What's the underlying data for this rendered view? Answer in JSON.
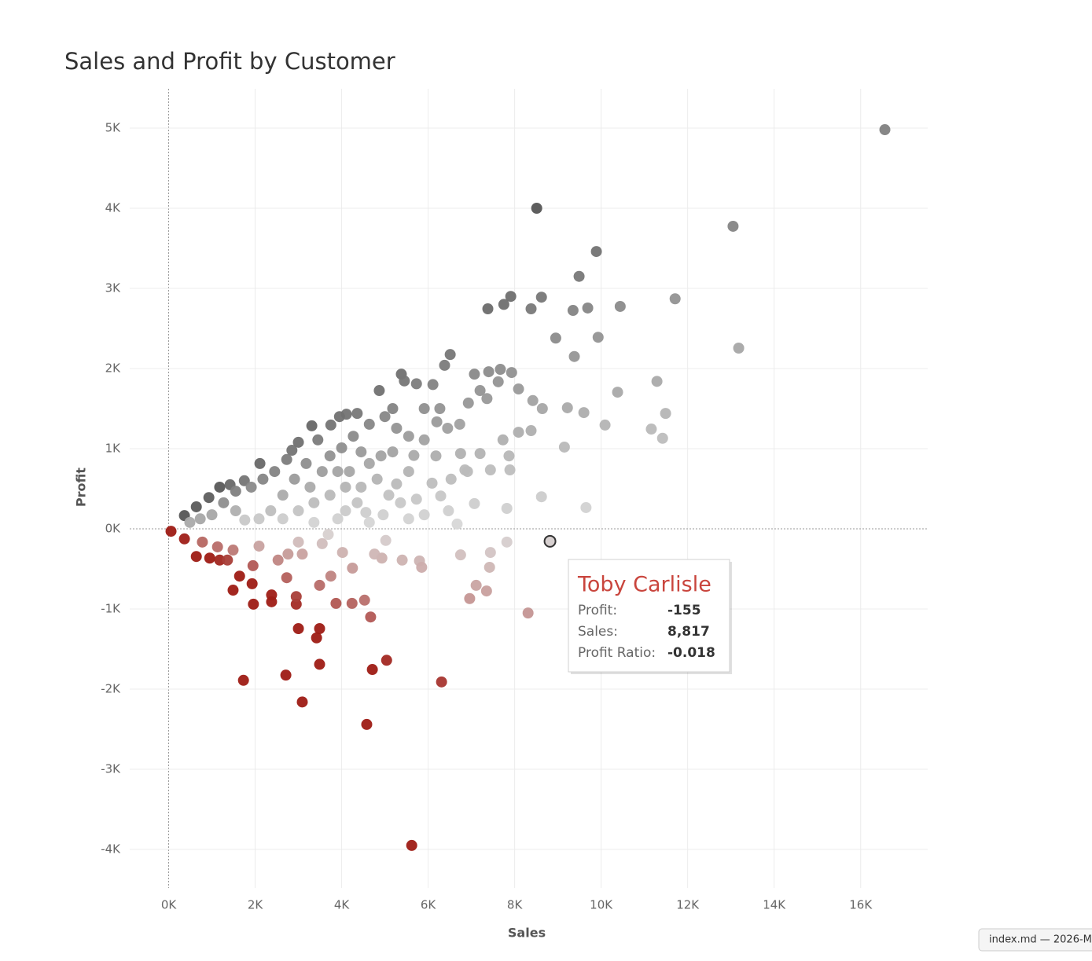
{
  "chart_data": {
    "type": "scatter",
    "title": "Sales and Profit by Customer",
    "x_label": "Sales",
    "y_label": "Profit",
    "xlim": [
      -900,
      17550
    ],
    "ylim": [
      -4480,
      5490
    ],
    "xticks": [
      {
        "value": 0,
        "label": "0K"
      },
      {
        "value": 2000,
        "label": "2K"
      },
      {
        "value": 4000,
        "label": "4K"
      },
      {
        "value": 6000,
        "label": "6K"
      },
      {
        "value": 8000,
        "label": "8K"
      },
      {
        "value": 10000,
        "label": "10K"
      },
      {
        "value": 12000,
        "label": "12K"
      },
      {
        "value": 14000,
        "label": "14K"
      },
      {
        "value": 16000,
        "label": "16K"
      }
    ],
    "yticks": [
      {
        "value": -4000,
        "label": "-4K"
      },
      {
        "value": -3000,
        "label": "-3K"
      },
      {
        "value": -2000,
        "label": "-2K"
      },
      {
        "value": -1000,
        "label": "-1K"
      },
      {
        "value": 0,
        "label": "0K"
      },
      {
        "value": 1000,
        "label": "1K"
      },
      {
        "value": 2000,
        "label": "2K"
      },
      {
        "value": 3000,
        "label": "3K"
      },
      {
        "value": 4000,
        "label": "4K"
      },
      {
        "value": 5000,
        "label": "5K"
      }
    ],
    "grid": true,
    "colors": {
      "negative": "#9e1b14",
      "neutral": "#dadada",
      "positive": "#555555",
      "highlight_stroke": "#333333"
    },
    "x": [
      16560,
      8510,
      13050,
      9890,
      9490,
      11710,
      8620,
      7910,
      7750,
      7380,
      8380,
      9350,
      9690,
      10440,
      8950,
      9930,
      13180,
      9380,
      6510,
      11290,
      10380,
      11490,
      9600,
      9220,
      10090,
      11160,
      11420,
      9150,
      8620,
      9650,
      7820,
      7820,
      8817,
      8310,
      6310,
      5620,
      4580,
      3090,
      1730,
      2710,
      3490,
      4710,
      5040,
      3000,
      3490,
      3420,
      4670,
      1960,
      2380,
      2950,
      3870,
      4240,
      4530,
      1490,
      1930,
      2380,
      2950,
      3490,
      6960,
      7110,
      7350,
      7420,
      7440,
      6750,
      5800,
      5850,
      5400,
      640,
      950,
      1180,
      1360,
      1640,
      1950,
      2530,
      2760,
      3090,
      2730,
      3750,
      4250,
      4930,
      4760,
      365,
      780,
      1130,
      1490,
      2090,
      3000,
      3550,
      4020,
      3690,
      5020,
      55,
      6380,
      6110,
      5730,
      5380,
      5450,
      4870,
      4360,
      4110,
      3950,
      3750,
      3310,
      3000,
      2850,
      2110,
      1750,
      1420,
      930,
      640,
      365,
      7070,
      7400,
      7670,
      7930,
      7200,
      7360,
      8090,
      8420,
      8640,
      8380,
      8090,
      7730,
      7870,
      7890,
      7440,
      7070,
      6850,
      7200,
      6750,
      6530,
      6290,
      6470,
      6670,
      7620,
      6930,
      6730,
      6450,
      6200,
      5910,
      5670,
      5550,
      5270,
      5090,
      4960,
      4560,
      4360,
      4090,
      3910,
      3730,
      3450,
      3180,
      2910,
      2640,
      2360,
      2090,
      1760,
      1550,
      1270,
      1000,
      730,
      490,
      2450,
      2730,
      3550,
      4180,
      4640,
      5180,
      5550,
      5270,
      5000,
      4640,
      4270,
      4000,
      4450,
      4820,
      4450,
      3730,
      3360,
      3000,
      3910,
      4640,
      5550,
      5910,
      6090,
      6180,
      1910,
      2180,
      1550,
      1180,
      3270,
      2640,
      3360,
      4090,
      5360,
      5730,
      4910,
      5180,
      5910,
      6270,
      6910
    ],
    "values": [
      4980,
      4000,
      3775,
      3460,
      3150,
      2870,
      2890,
      2900,
      2800,
      2745,
      2745,
      2725,
      2755,
      2775,
      2380,
      2390,
      2255,
      2150,
      2175,
      1840,
      1705,
      1440,
      1450,
      1510,
      1295,
      1245,
      1130,
      1020,
      400,
      265,
      255,
      -165,
      -155,
      -1050,
      -1910,
      -3950,
      -2440,
      -2160,
      -1890,
      -1825,
      -1690,
      -1755,
      -1640,
      -1245,
      -1245,
      -1360,
      -1100,
      -940,
      -910,
      -940,
      -930,
      -930,
      -890,
      -765,
      -685,
      -825,
      -845,
      -705,
      -870,
      -705,
      -775,
      -480,
      -295,
      -325,
      -400,
      -480,
      -390,
      -345,
      -365,
      -390,
      -390,
      -590,
      -460,
      -390,
      -315,
      -315,
      -610,
      -590,
      -490,
      -365,
      -315,
      -125,
      -165,
      -225,
      -265,
      -215,
      -165,
      -185,
      -295,
      -70,
      -145,
      -30,
      2040,
      1800,
      1810,
      1930,
      1845,
      1725,
      1440,
      1430,
      1400,
      1295,
      1285,
      1080,
      980,
      815,
      600,
      550,
      390,
      275,
      165,
      1930,
      1960,
      1990,
      1950,
      1725,
      1625,
      1745,
      1600,
      1500,
      1225,
      1205,
      1110,
      910,
      735,
      735,
      315,
      735,
      940,
      940,
      620,
      410,
      225,
      60,
      1835,
      1570,
      1305,
      1255,
      1335,
      1110,
      915,
      715,
      560,
      420,
      175,
      205,
      325,
      520,
      715,
      910,
      1110,
      815,
      620,
      420,
      225,
      125,
      110,
      225,
      325,
      175,
      125,
      80,
      715,
      865,
      715,
      715,
      815,
      960,
      1155,
      1255,
      1400,
      1305,
      1155,
      1010,
      960,
      620,
      520,
      420,
      325,
      225,
      125,
      80,
      125,
      175,
      570,
      910,
      520,
      620,
      470,
      520,
      520,
      125,
      80,
      225,
      325,
      370,
      910,
      1500,
      1500,
      1500,
      715
    ],
    "highlight_index": 32,
    "tooltip": {
      "name": "Toby Carlisle",
      "rows": [
        {
          "label": "Profit:",
          "value": "-155"
        },
        {
          "label": "Sales:",
          "value": "8,817"
        },
        {
          "label": "Profit Ratio:",
          "value": "-0.018"
        }
      ]
    }
  },
  "window_tab": "index.md — 2026-M"
}
